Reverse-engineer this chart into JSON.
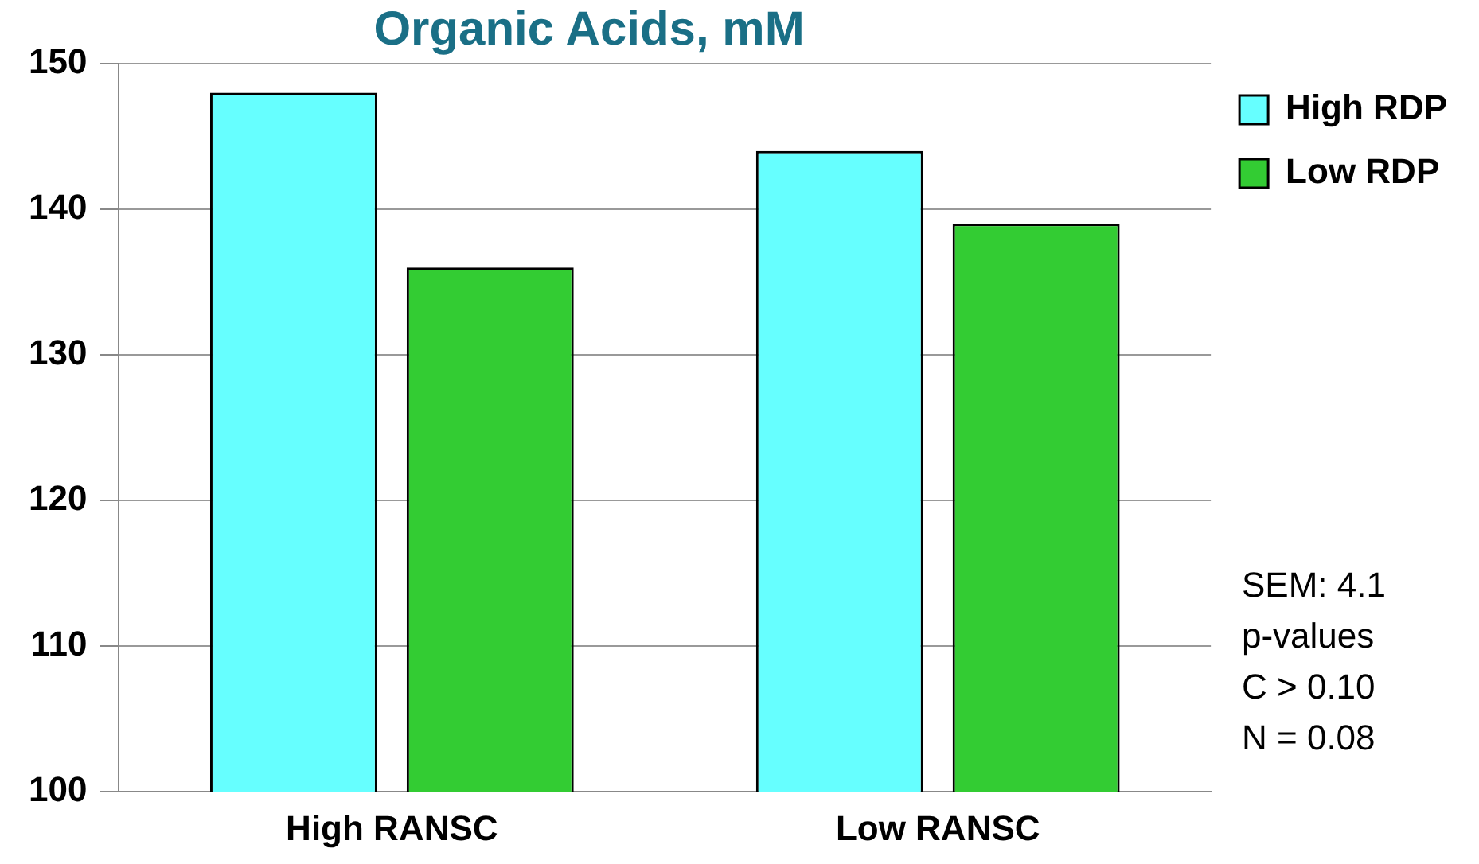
{
  "chart_data": {
    "type": "bar",
    "title": "Organic Acids, mM",
    "categories": [
      "High RANSC",
      "Low RANSC"
    ],
    "series": [
      {
        "name": "High RDP",
        "color": "#66ffff",
        "values": [
          148,
          144
        ]
      },
      {
        "name": "Low RDP",
        "color": "#33cc33",
        "values": [
          136,
          139
        ]
      }
    ],
    "ylim": [
      100,
      150
    ],
    "yticks": [
      100,
      110,
      120,
      130,
      140,
      150
    ],
    "grid": "y",
    "legend": "top right",
    "annotations": [
      "SEM: 4.1",
      "p-values",
      "C > 0.10",
      "N = 0.08"
    ]
  }
}
